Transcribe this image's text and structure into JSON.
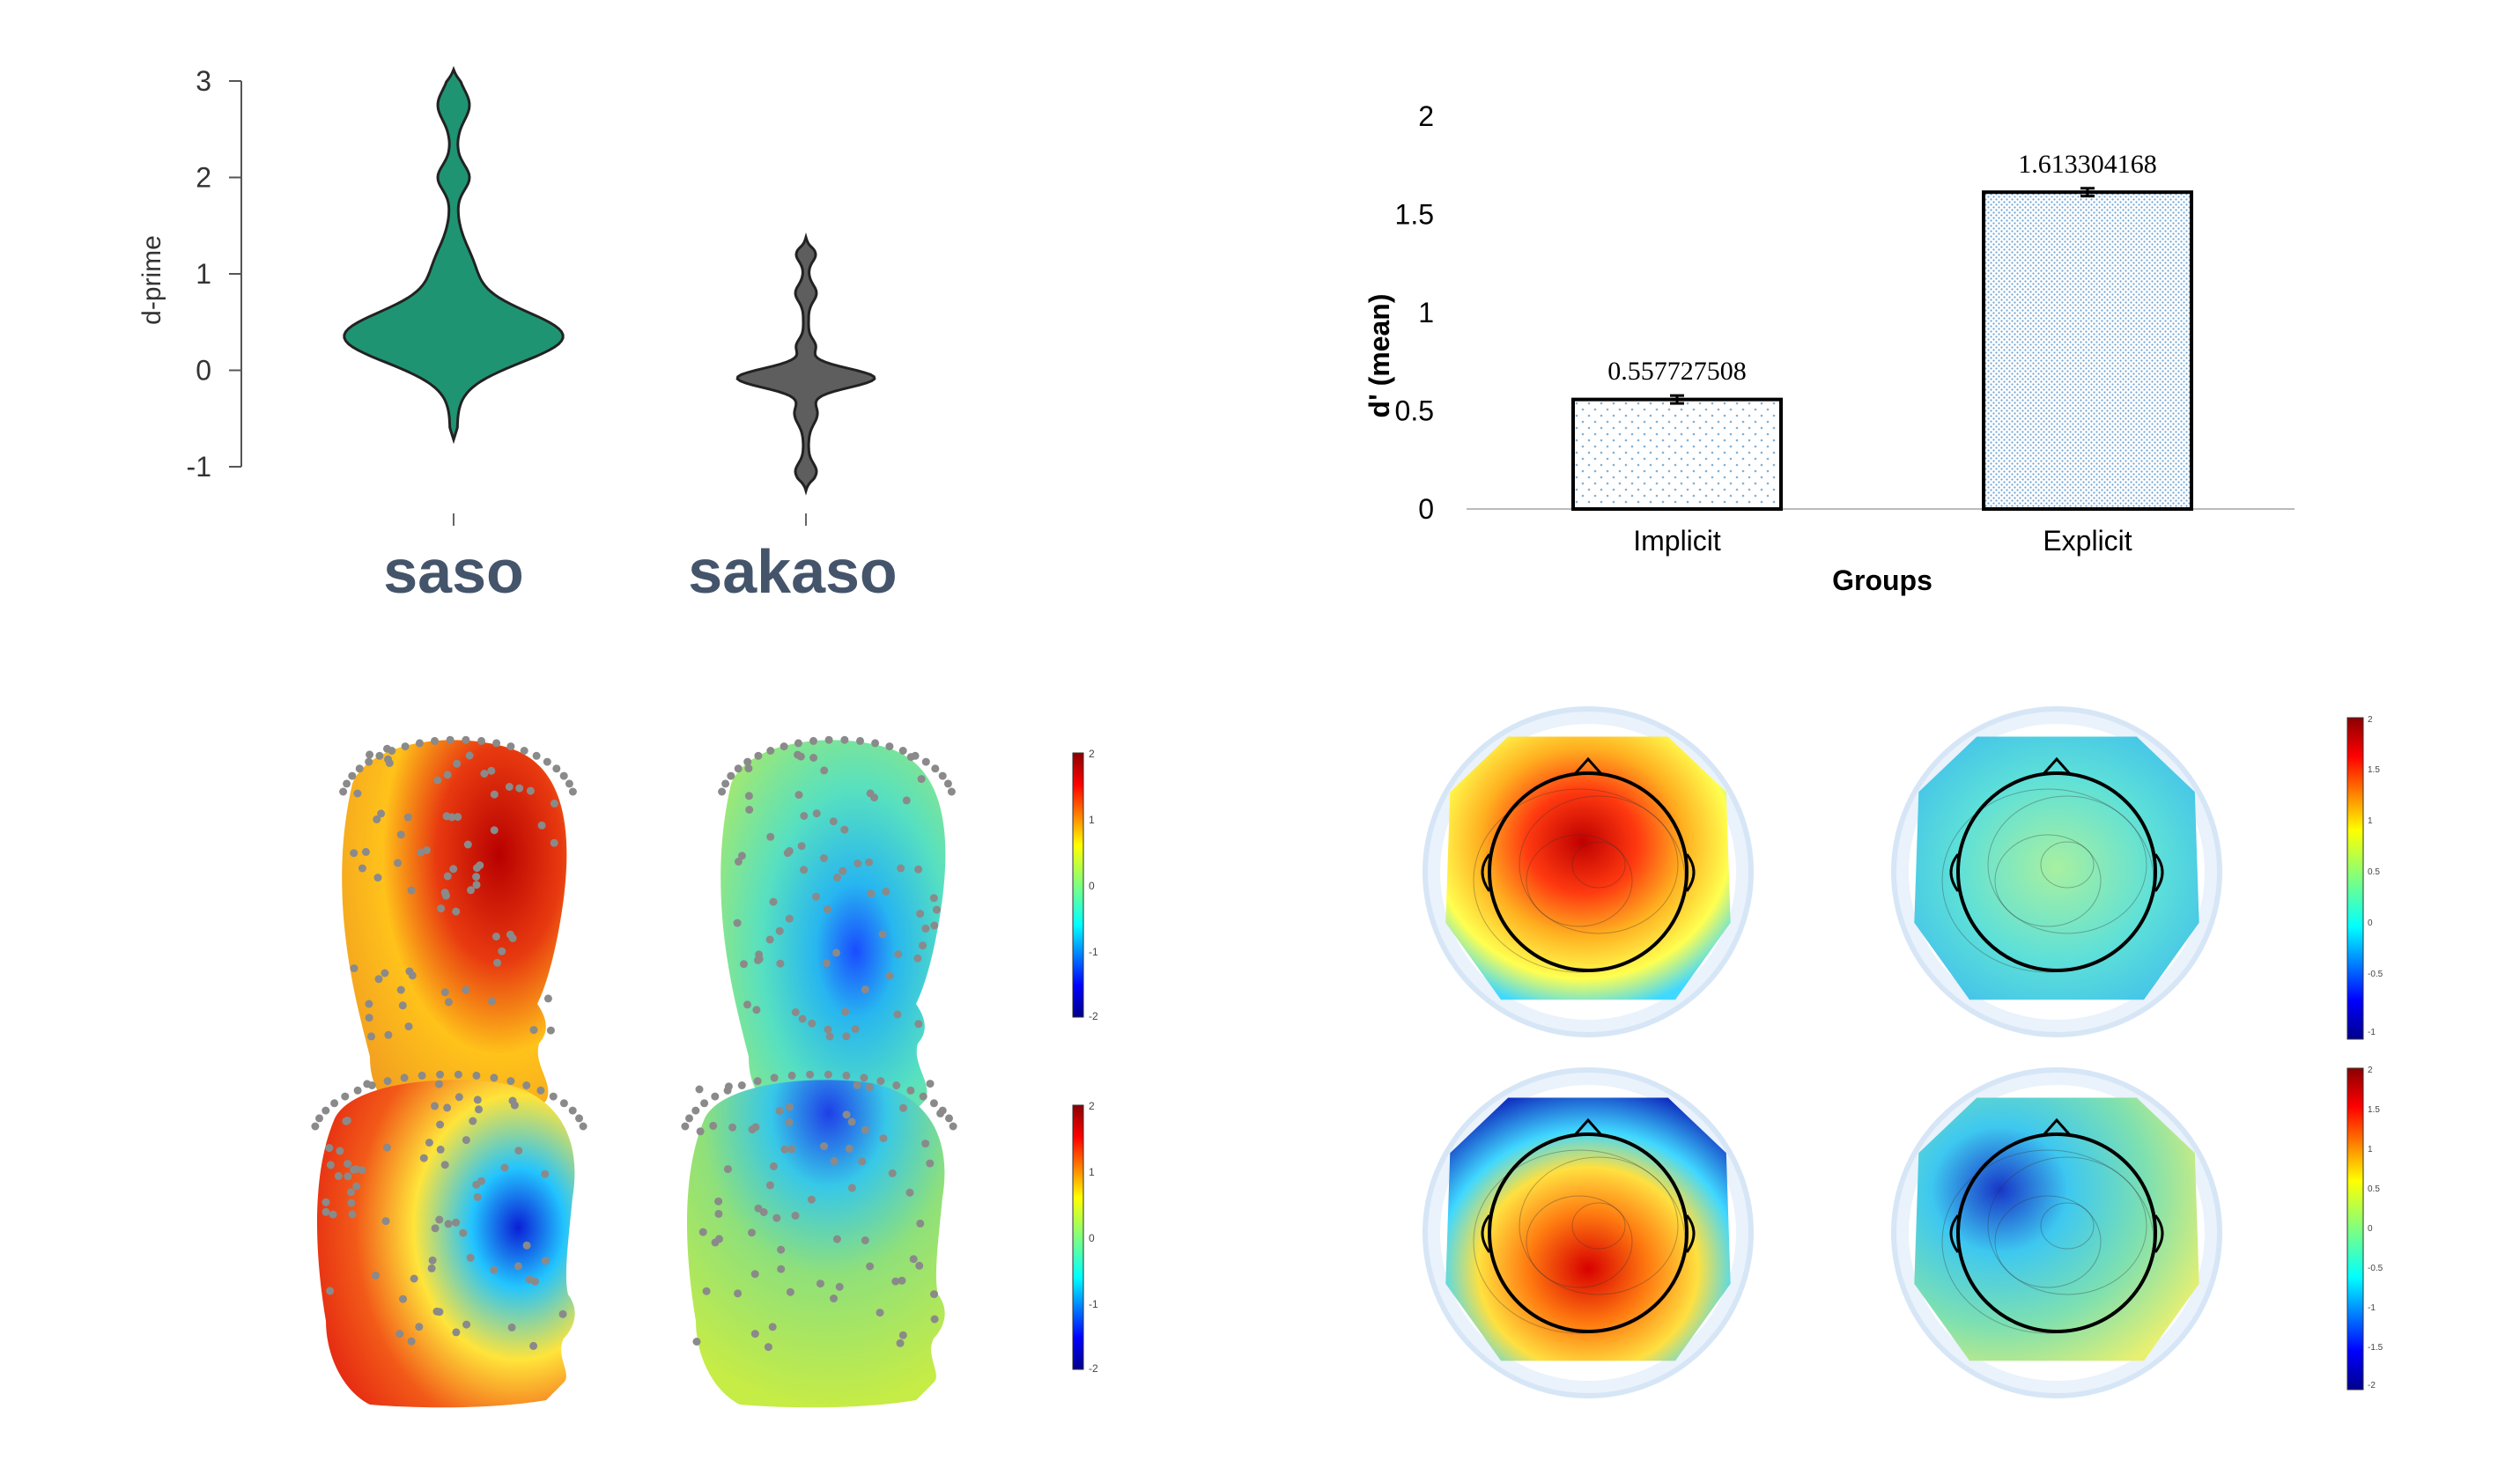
{
  "chart_data": [
    {
      "type": "violin",
      "ylabel": "d-prime",
      "ylim": [
        -1,
        3
      ],
      "yticks": [
        "3",
        "2",
        "1",
        "0",
        "-1"
      ],
      "categories": [
        "saso",
        "sakaso"
      ],
      "colors": {
        "saso": "#1f9473",
        "sakaso": "#5e5e5e"
      },
      "series": [
        {
          "name": "saso",
          "min": -0.72,
          "max": 3.12,
          "peak_density_at": 0.35
        },
        {
          "name": "sakaso",
          "min": -1.25,
          "max": 1.38,
          "peak_density_at": -0.1
        }
      ]
    },
    {
      "type": "bar",
      "title": "",
      "xlabel": "Groups",
      "ylabel": "d' (mean)",
      "ylim": [
        0,
        2
      ],
      "yticks": [
        "2",
        "1.5",
        "1",
        "0.5",
        "0"
      ],
      "categories": [
        "Implicit",
        "Explicit"
      ],
      "values": [
        0.557727508,
        1.613304168
      ],
      "value_labels": [
        "0.557727508",
        "1.613304168"
      ],
      "errors": [
        0.02,
        0.02
      ]
    },
    {
      "type": "heatmap",
      "description_kind": "3d-head-topography",
      "colorbar_ticks": [
        "2",
        "1",
        "0",
        "-1",
        "-2"
      ]
    },
    {
      "type": "heatmap",
      "description_kind": "2d-scalp-topography",
      "colorbar_top_ticks": [
        "2",
        "1.5",
        "1",
        "0.5",
        "0",
        "-0.5",
        "-1"
      ],
      "colorbar_bottom_ticks": [
        "2",
        "1.5",
        "1",
        "0.5",
        "0",
        "-0.5",
        "-1",
        "-1.5",
        "-2"
      ]
    }
  ]
}
